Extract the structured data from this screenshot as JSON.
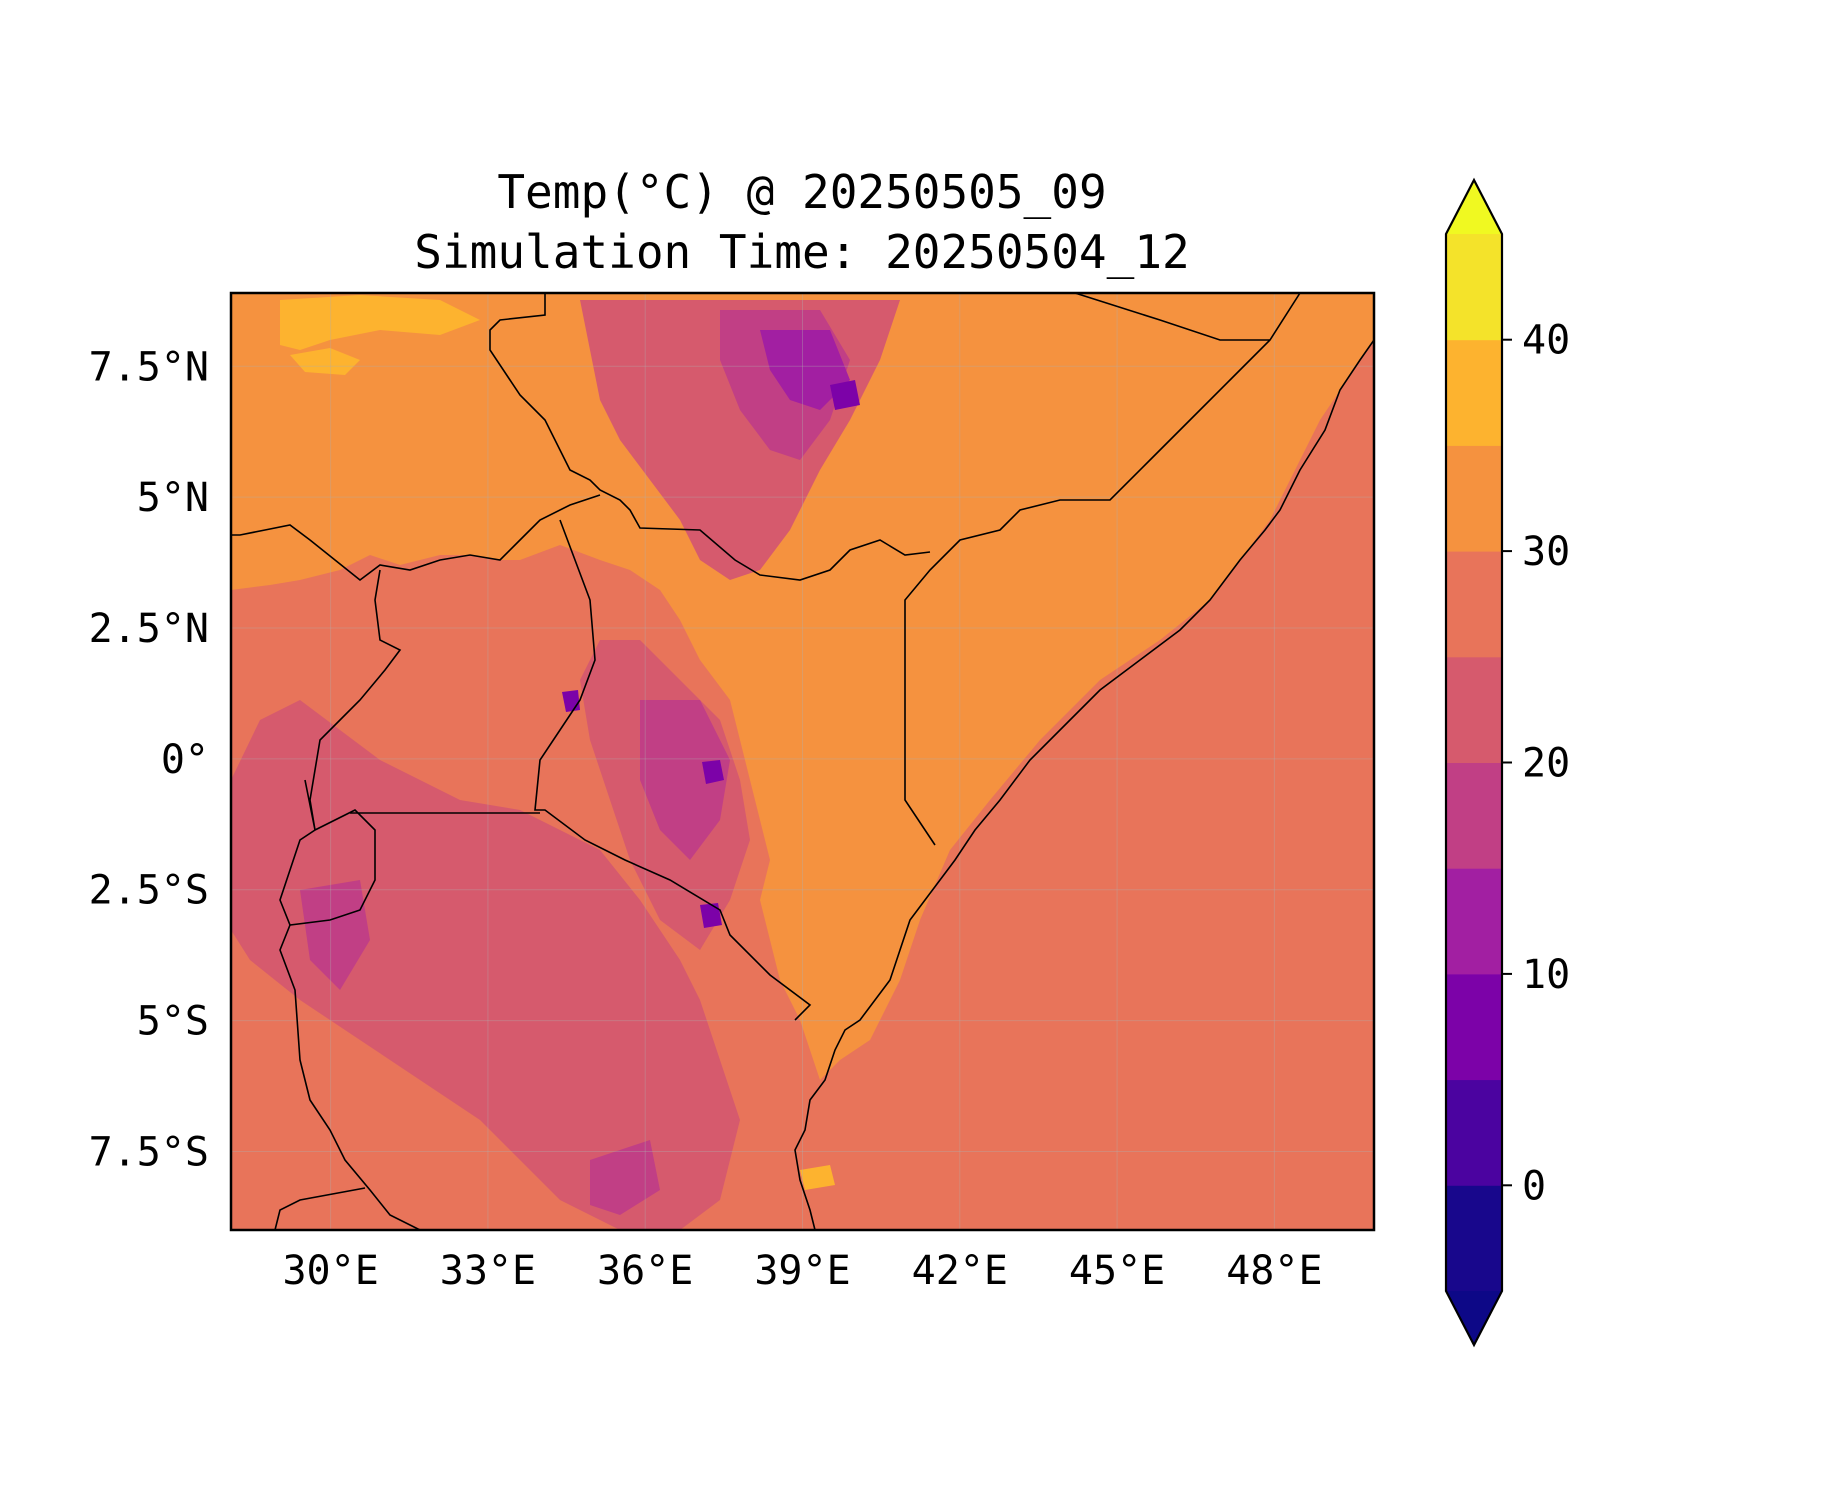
{
  "title": {
    "line1": "Temp(°C) @ 20250505_09",
    "line2": "Simulation Time: 20250504_12"
  },
  "map": {
    "lon_range": [
      28.1,
      49.9
    ],
    "lat_range": [
      -9.0,
      8.9
    ],
    "lon_ticks": [
      {
        "value": 30,
        "label": "30°E"
      },
      {
        "value": 33,
        "label": "33°E"
      },
      {
        "value": 36,
        "label": "36°E"
      },
      {
        "value": 39,
        "label": "39°E"
      },
      {
        "value": 42,
        "label": "42°E"
      },
      {
        "value": 45,
        "label": "45°E"
      },
      {
        "value": 48,
        "label": "48°E"
      }
    ],
    "lat_ticks": [
      {
        "value": 7.5,
        "label": "7.5°N"
      },
      {
        "value": 5,
        "label": "5°N"
      },
      {
        "value": 2.5,
        "label": "2.5°N"
      },
      {
        "value": 0,
        "label": "0°"
      },
      {
        "value": -2.5,
        "label": "2.5°S"
      },
      {
        "value": -5,
        "label": "5°S"
      },
      {
        "value": -7.5,
        "label": "7.5°S"
      }
    ],
    "gridlines": true,
    "ocean_color": "#e8745a"
  },
  "colorbar": {
    "colormap": "plasma",
    "orientation": "vertical",
    "extend": "both",
    "levels": [
      -5,
      0,
      5,
      10,
      15,
      20,
      25,
      30,
      35,
      40,
      45
    ],
    "colors": [
      "#18078c",
      "#4b03a0",
      "#7c02a8",
      "#a21fa2",
      "#c13f85",
      "#d65a6d",
      "#e8745a",
      "#f5923f",
      "#fdb32f",
      "#f4e32a"
    ],
    "under_color": "#0d0887",
    "over_color": "#f0f921",
    "ticks": [
      {
        "value": 0,
        "label": "0"
      },
      {
        "value": 10,
        "label": "10"
      },
      {
        "value": 20,
        "label": "20"
      },
      {
        "value": 30,
        "label": "30"
      },
      {
        "value": 40,
        "label": "40"
      }
    ]
  }
}
